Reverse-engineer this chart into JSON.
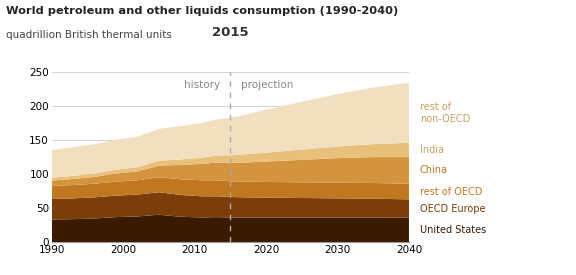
{
  "title": "World petroleum and other liquids consumption (1990-2040)",
  "subtitle": "quadrillion British thermal units",
  "years": [
    1990,
    1993,
    1996,
    1999,
    2002,
    2005,
    2008,
    2011,
    2013,
    2015,
    2017,
    2020,
    2025,
    2030,
    2035,
    2040
  ],
  "series": {
    "United States": {
      "values": [
        33,
        33.5,
        34.5,
        36.5,
        37.5,
        40,
        37,
        36,
        36.5,
        36,
        36,
        36,
        36,
        36,
        36,
        35.5
      ],
      "color": "#3a1a00"
    },
    "OECD Europe": {
      "values": [
        30,
        30.5,
        31,
        31.5,
        32,
        33,
        32,
        31,
        30.5,
        30,
        29.5,
        29,
        28.5,
        28,
        27.5,
        27
      ],
      "color": "#7b3d0a"
    },
    "rest of OECD": {
      "values": [
        19,
        19.5,
        20,
        20.5,
        21,
        22,
        23,
        23.5,
        23.5,
        23,
        23,
        23,
        23,
        23,
        23,
        23
      ],
      "color": "#c07820"
    },
    "China": {
      "values": [
        8,
        9,
        10,
        12,
        13,
        17,
        21,
        24,
        26,
        27,
        28,
        30,
        33,
        36,
        38,
        39
      ],
      "color": "#d4943e"
    },
    "India": {
      "values": [
        4,
        4.5,
        5,
        5.5,
        6,
        7,
        8,
        9,
        10,
        11,
        12,
        13,
        15,
        17,
        19,
        21
      ],
      "color": "#e8c07a"
    },
    "rest of non-OECD": {
      "values": [
        41,
        42,
        43,
        44,
        45,
        47,
        49,
        51,
        53,
        55,
        58,
        63,
        70,
        77,
        83,
        88
      ],
      "color": "#f2dfc0"
    }
  },
  "ylim": [
    0,
    250
  ],
  "yticks": [
    0,
    50,
    100,
    150,
    200,
    250
  ],
  "xticks": [
    1990,
    2000,
    2010,
    2020,
    2030,
    2040
  ],
  "split_year": 2015,
  "history_label": "history",
  "projection_label": "projection",
  "year_label": "2015",
  "grid_color": "#cccccc",
  "dashed_line_color": "#aaaaaa",
  "series_order": [
    "United States",
    "OECD Europe",
    "rest of OECD",
    "China",
    "India",
    "rest of non-OECD"
  ],
  "label_texts": [
    "United States",
    "OECD Europe",
    "rest of OECD",
    "China",
    "India",
    "rest of\nnon-OECD"
  ],
  "label_colors": [
    "#3a1a00",
    "#7b3d0a",
    "#c07820",
    "#c07820",
    "#c8a060",
    "#c8a060"
  ]
}
